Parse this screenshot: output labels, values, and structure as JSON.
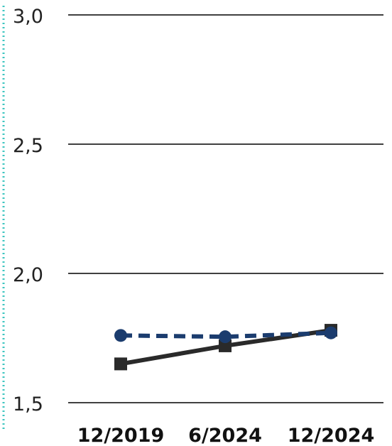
{
  "chart_data": {
    "type": "line",
    "categories": [
      "12/2019",
      "6/2024",
      "12/2024"
    ],
    "series": [
      {
        "values": [
          1.65,
          1.72,
          1.78
        ],
        "color": "#2a2a2a",
        "marker": "square",
        "dash": "solid"
      },
      {
        "values": [
          1.76,
          1.755,
          1.77
        ],
        "color": "#1b3c6e",
        "marker": "circle",
        "dash": "dashed"
      }
    ],
    "y_ticks": [
      "3,0",
      "2,5",
      "2,0",
      "1,5"
    ],
    "y_tick_values": [
      3.0,
      2.5,
      2.0,
      1.5
    ],
    "ylim": [
      1.5,
      3.0
    ],
    "grid": true,
    "left_border_color": "#3ec6c0"
  }
}
